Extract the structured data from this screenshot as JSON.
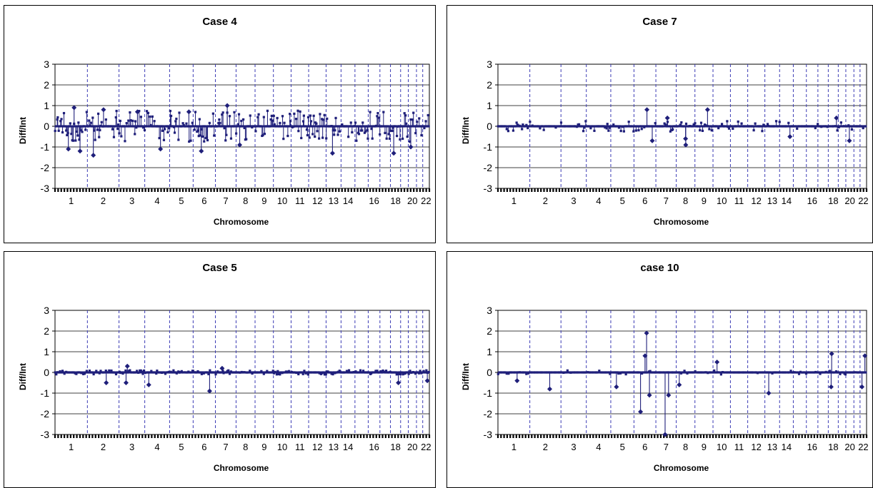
{
  "chart_data": [
    {
      "type": "scatter",
      "title": "Case 4",
      "xlabel": "Chromosome",
      "ylabel": "Diff/Int",
      "ylim": [
        -3,
        3
      ],
      "yticks": [
        3,
        2,
        1,
        0,
        -1,
        -2,
        -3
      ],
      "xtick_labels": [
        "1",
        "2",
        "3",
        "4",
        "5",
        "6",
        "7",
        "8",
        "9",
        "10",
        "11",
        "12",
        "13",
        "14",
        "16",
        "18",
        "20",
        "22"
      ],
      "grid": "horizontal",
      "profile": "high-noise",
      "spikes": [
        {
          "chr": "1",
          "value": 0.9
        },
        {
          "chr": "1",
          "value": -1.2
        },
        {
          "chr": "1",
          "value": -1.1
        },
        {
          "chr": "2",
          "value": -1.4
        },
        {
          "chr": "2",
          "value": 0.8
        },
        {
          "chr": "3",
          "value": 0.7
        },
        {
          "chr": "4",
          "value": -1.1
        },
        {
          "chr": "5",
          "value": 0.7
        },
        {
          "chr": "6",
          "value": -1.2
        },
        {
          "chr": "7",
          "value": 1.0
        },
        {
          "chr": "8",
          "value": -0.9
        },
        {
          "chr": "13",
          "value": -1.3
        },
        {
          "chr": "18",
          "value": -1.3
        },
        {
          "chr": "20",
          "value": -1.0
        }
      ]
    },
    {
      "type": "scatter",
      "title": "Case 7",
      "xlabel": "Chromosome",
      "ylabel": "Diff/Int",
      "ylim": [
        -3,
        3
      ],
      "yticks": [
        3,
        2,
        1,
        0,
        -1,
        -2,
        -3
      ],
      "xtick_labels": [
        "1",
        "2",
        "3",
        "4",
        "5",
        "6",
        "7",
        "8",
        "9",
        "10",
        "11",
        "12",
        "13",
        "14",
        "16",
        "18",
        "20",
        "22"
      ],
      "grid": "horizontal",
      "profile": "low-noise",
      "spikes": [
        {
          "chr": "6",
          "value": 0.8
        },
        {
          "chr": "6",
          "value": -0.7
        },
        {
          "chr": "7",
          "value": 0.4
        },
        {
          "chr": "8",
          "value": -0.6
        },
        {
          "chr": "8",
          "value": -0.9
        },
        {
          "chr": "9",
          "value": 0.8
        },
        {
          "chr": "14",
          "value": -0.5
        },
        {
          "chr": "18",
          "value": 0.4
        },
        {
          "chr": "20",
          "value": -0.7
        }
      ]
    },
    {
      "type": "scatter",
      "title": "Case 5",
      "xlabel": "Chromosome",
      "ylabel": "Diff/Int",
      "ylim": [
        -3,
        3
      ],
      "yticks": [
        3,
        2,
        1,
        0,
        -1,
        -2,
        -3
      ],
      "xtick_labels": [
        "1",
        "2",
        "3",
        "4",
        "5",
        "6",
        "7",
        "8",
        "9",
        "10",
        "11",
        "12",
        "13",
        "14",
        "16",
        "18",
        "20",
        "22"
      ],
      "grid": "horizontal",
      "profile": "flat",
      "spikes": [
        {
          "chr": "2",
          "value": -0.5
        },
        {
          "chr": "3",
          "value": 0.3
        },
        {
          "chr": "3",
          "value": -0.5
        },
        {
          "chr": "4",
          "value": -0.6
        },
        {
          "chr": "6",
          "value": -0.9
        },
        {
          "chr": "7",
          "value": 0.2
        },
        {
          "chr": "18",
          "value": -0.5
        },
        {
          "chr": "22",
          "value": -0.4
        }
      ]
    },
    {
      "type": "scatter",
      "title": "case 10",
      "xlabel": "Chromosome",
      "ylabel": "Diff/Int",
      "ylim": [
        -3,
        3
      ],
      "yticks": [
        3,
        2,
        1,
        0,
        -1,
        -2,
        -3
      ],
      "xtick_labels": [
        "1",
        "2",
        "3",
        "4",
        "5",
        "6",
        "7",
        "8",
        "9",
        "10",
        "11",
        "12",
        "13",
        "14",
        "16",
        "18",
        "20",
        "22"
      ],
      "grid": "horizontal",
      "profile": "sparse",
      "spikes": [
        {
          "chr": "1",
          "value": -0.4
        },
        {
          "chr": "2",
          "value": -0.8
        },
        {
          "chr": "5",
          "value": -0.7
        },
        {
          "chr": "6",
          "value": 1.9
        },
        {
          "chr": "6",
          "value": 0.8
        },
        {
          "chr": "6",
          "value": -1.9
        },
        {
          "chr": "6",
          "value": -1.1
        },
        {
          "chr": "7",
          "value": -3.0
        },
        {
          "chr": "7",
          "value": -1.1
        },
        {
          "chr": "8",
          "value": -0.6
        },
        {
          "chr": "10",
          "value": 0.5
        },
        {
          "chr": "13",
          "value": -1.0
        },
        {
          "chr": "18",
          "value": 0.9
        },
        {
          "chr": "18",
          "value": -0.7
        },
        {
          "chr": "22",
          "value": -0.7
        },
        {
          "chr": "22",
          "value": 0.8
        }
      ]
    }
  ],
  "colors": {
    "series": "#1f1f7a",
    "boundary": "#3b3bb5",
    "grid": "#000000"
  }
}
